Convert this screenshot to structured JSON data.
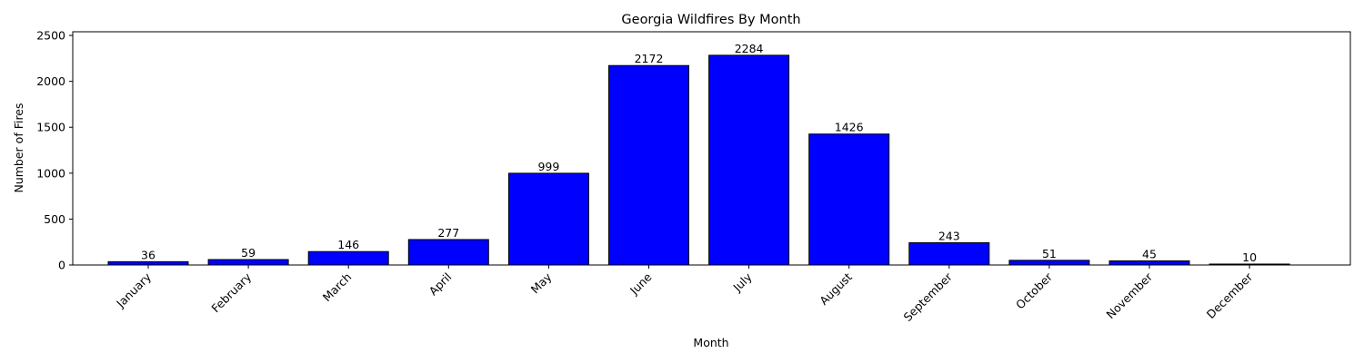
{
  "chart_data": {
    "type": "bar",
    "title": "Georgia Wildfires By Month",
    "xlabel": "Month",
    "ylabel": "Number of Fires",
    "categories": [
      "January",
      "February",
      "March",
      "April",
      "May",
      "June",
      "July",
      "August",
      "September",
      "October",
      "November",
      "December"
    ],
    "values": [
      36,
      59,
      146,
      277,
      999,
      2172,
      2284,
      1426,
      243,
      51,
      45,
      10
    ],
    "ylim": [
      0,
      2540
    ],
    "yticks": [
      0,
      500,
      1000,
      1500,
      2000,
      2500
    ],
    "grid": false,
    "legend": "none",
    "bar_color": "#0000ff",
    "bar_edge_color": "#000000",
    "x_tick_rotation_deg": 45,
    "data_labels": true
  }
}
